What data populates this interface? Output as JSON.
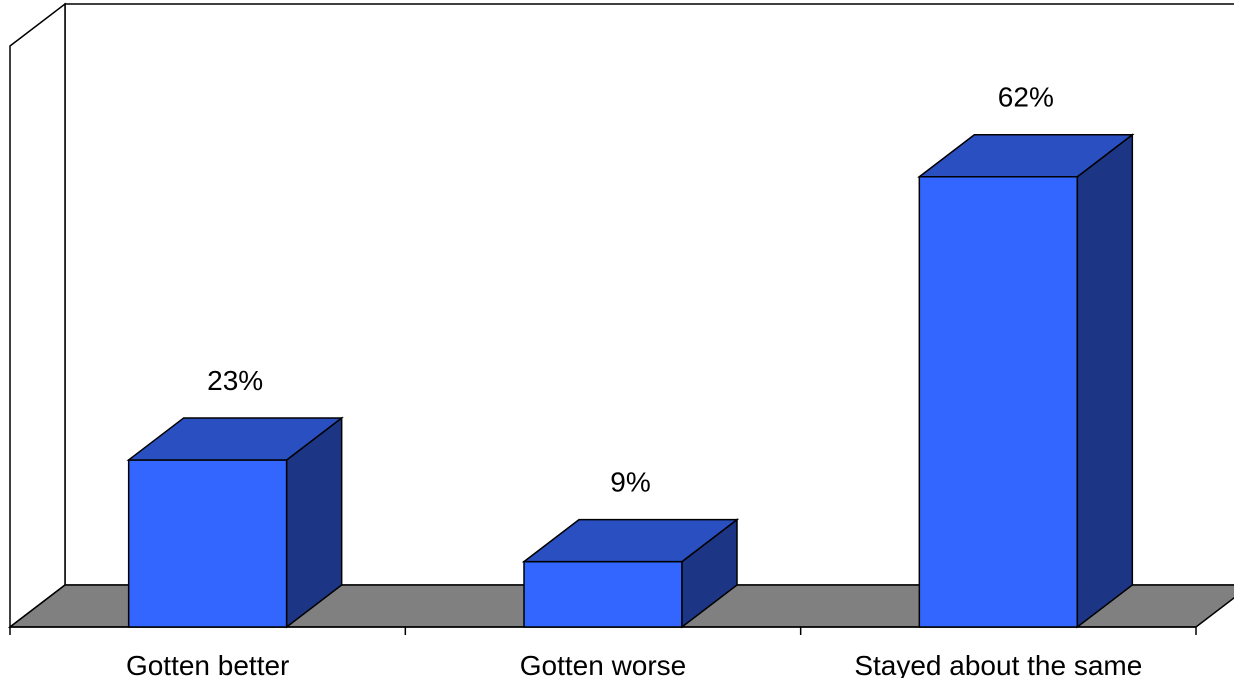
{
  "chart_data": {
    "type": "bar",
    "categories": [
      "Gotten better",
      "Gotten worse",
      "Stayed about the same"
    ],
    "values": [
      23,
      9,
      62
    ],
    "value_labels": [
      "23%",
      "9%",
      "62%"
    ],
    "title": "",
    "xlabel": "",
    "ylabel": "",
    "ylim": [
      0,
      80
    ],
    "grid": false,
    "legend": "none",
    "style": "3d-column",
    "colors": {
      "bar_front": "#3366ff",
      "bar_top": "#2a4fc0",
      "bar_side": "#1c3585",
      "floor": "#808080",
      "outline": "#000000"
    }
  }
}
